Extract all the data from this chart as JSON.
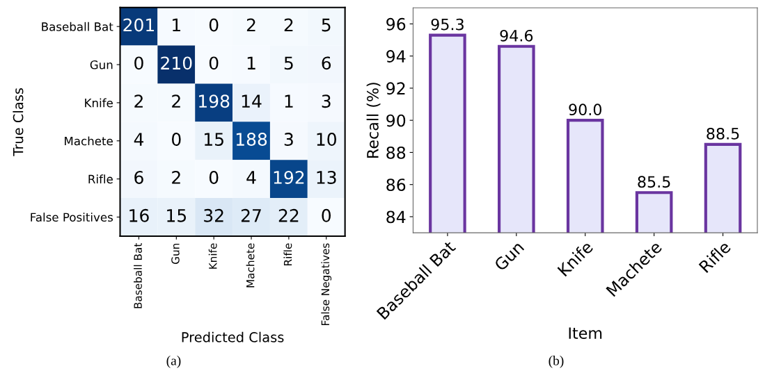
{
  "chart_data": [
    {
      "type": "heatmap",
      "xlabel": "Predicted Class",
      "ylabel": "True Class",
      "categories": [
        "Baseball Bat",
        "Gun",
        "Knife",
        "Machete",
        "Rifle",
        "False Negatives"
      ],
      "y_categories": [
        "Baseball Bat",
        "Gun",
        "Knife",
        "Machete",
        "Rifle",
        "False Positives"
      ],
      "cells": [
        [
          201,
          1,
          0,
          2,
          2,
          5
        ],
        [
          0,
          210,
          0,
          1,
          5,
          6
        ],
        [
          2,
          2,
          198,
          14,
          1,
          3
        ],
        [
          4,
          0,
          15,
          188,
          3,
          10
        ],
        [
          6,
          2,
          0,
          4,
          192,
          13
        ],
        [
          16,
          15,
          32,
          27,
          22,
          0
        ]
      ],
      "data_labels": true,
      "annotations": [
        "(a)"
      ]
    },
    {
      "type": "bar",
      "xlabel": "Item",
      "ylabel": "Recall (%)",
      "categories": [
        "Baseball Bat",
        "Gun",
        "Knife",
        "Machete",
        "Rifle"
      ],
      "values": [
        95.3,
        94.6,
        90.0,
        85.5,
        88.5
      ],
      "value_labels": [
        "95.3",
        "94.6",
        "90.0",
        "85.5",
        "88.5"
      ],
      "color": "#e6e6fa",
      "ylim": [
        83,
        97
      ],
      "yticks": [
        84,
        86,
        88,
        90,
        92,
        94,
        96
      ],
      "annotations": [
        "(b)"
      ]
    }
  ]
}
